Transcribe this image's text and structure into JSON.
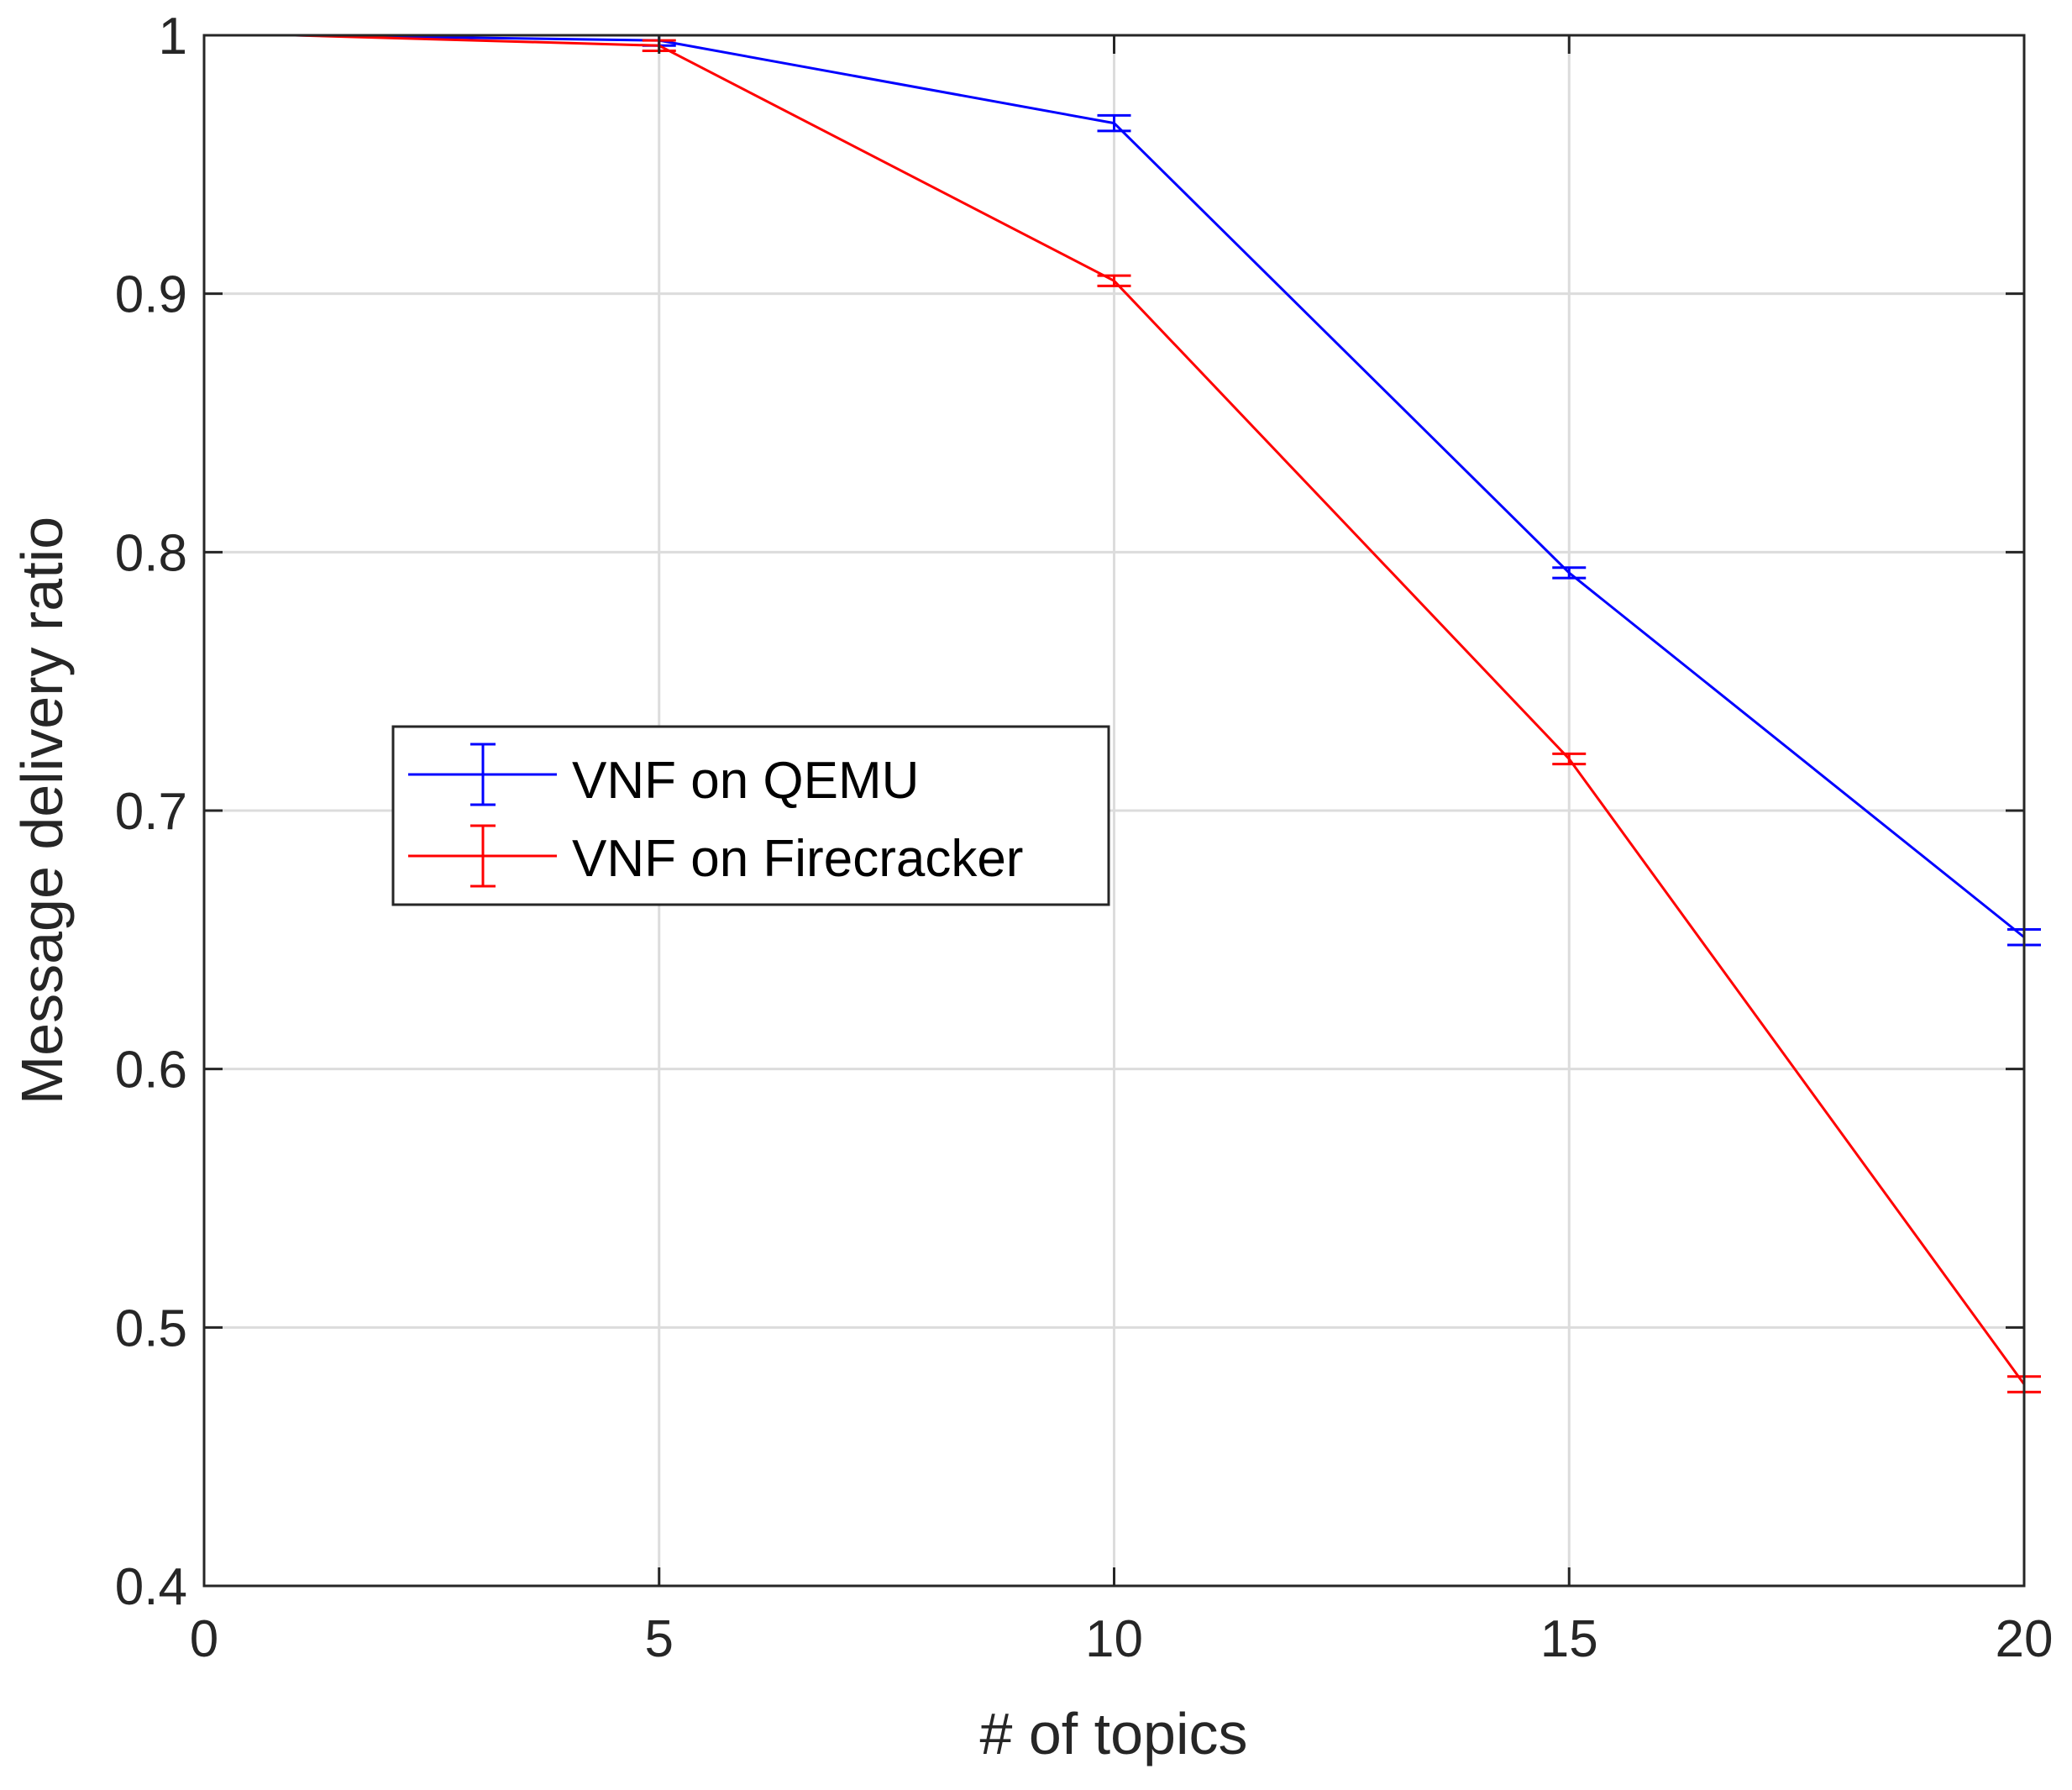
{
  "chart_data": {
    "type": "line",
    "title": "",
    "xlabel": "# of topics",
    "ylabel": "Message delivery ratio",
    "xlim": [
      0,
      20
    ],
    "ylim": [
      0.4,
      1
    ],
    "xticks": [
      0,
      5,
      10,
      15,
      20
    ],
    "xtick_labels": [
      "0",
      "5",
      "10",
      "15",
      "20"
    ],
    "yticks": [
      0.4,
      0.5,
      0.6,
      0.7,
      0.8,
      0.9,
      1
    ],
    "ytick_labels": [
      "0.4",
      "0.5",
      "0.6",
      "0.7",
      "0.8",
      "0.9",
      "1"
    ],
    "grid": true,
    "legend_position": "center-left",
    "error_bars": true,
    "series": [
      {
        "name": "VNF on QEMU",
        "color": "#0000ff",
        "x": [
          1,
          5,
          10,
          15,
          20
        ],
        "y": [
          1.0,
          0.998,
          0.966,
          0.792,
          0.651
        ],
        "err": [
          0,
          0.002,
          0.003,
          0.002,
          0.003
        ]
      },
      {
        "name": "VNF on Firecracker",
        "color": "#ff0000",
        "x": [
          1,
          5,
          10,
          15,
          20
        ],
        "y": [
          1.0,
          0.996,
          0.905,
          0.72,
          0.478
        ],
        "err": [
          0,
          0.002,
          0.002,
          0.002,
          0.003
        ]
      }
    ]
  }
}
